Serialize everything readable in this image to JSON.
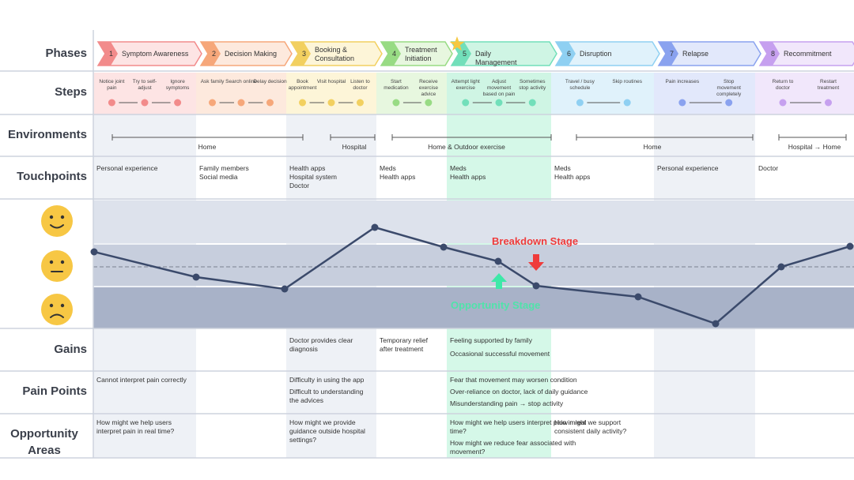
{
  "row_labels": [
    "Phases",
    "Steps",
    "Environments",
    "Touchpoints",
    "Gains",
    "Pain Points",
    "Opportunity Areas"
  ],
  "phases": [
    {
      "number": "1",
      "name": "Symptom Awareness",
      "steps": [
        "Notice joint pain",
        "Try to self- adjust",
        "Ignore symptoms"
      ],
      "touchpoints": [
        "Personal experience"
      ],
      "pain_points": [
        "Cannot interpret pain correctly"
      ],
      "opportunities": [
        "How might we help users interpret pain in real time?"
      ]
    },
    {
      "number": "2",
      "name": "Decision Making",
      "steps": [
        "Ask family",
        "Search online",
        "Delay decision"
      ],
      "touchpoints": [
        "Family members",
        "Social media"
      ]
    },
    {
      "number": "3",
      "name": "Booking & Consultation",
      "steps": [
        "Book appointment",
        "Visit hospital",
        "Listen to doctor"
      ],
      "touchpoints": [
        "Health apps",
        "Hospital system",
        "Doctor"
      ],
      "gains": [
        "Doctor provides clear diagnosis"
      ],
      "pain_points": [
        "Difficulty in using the app",
        "Difficult to understanding the advices"
      ],
      "opportunities": [
        "How might we provide guidance outside hospital settings?"
      ]
    },
    {
      "number": "4",
      "name": "Treatment Initiation",
      "steps": [
        "Start medication",
        "Receive exercise advice"
      ],
      "touchpoints": [
        "Meds",
        "Health apps"
      ],
      "gains": [
        "Temporary relief after treatment"
      ]
    },
    {
      "number": "5",
      "name": "Daily Management",
      "steps": [
        "Attempt light exercise",
        "Adjust movement based on pain",
        "Sometimes stop activity"
      ],
      "touchpoints": [
        "Meds",
        "Health apps"
      ],
      "gains": [
        "Feeling supported by family",
        "Occasional successful movement"
      ],
      "pain_points": [
        "Fear that movement may worsen condition",
        "Over-reliance on doctor, lack of daily guidance",
        "Misunderstanding pain → stop activity"
      ],
      "opportunities": [
        "How might we help users interpret pain in real time?",
        "How might we reduce fear associated with movement?"
      ]
    },
    {
      "number": "6",
      "name": "Disruption",
      "steps": [
        "Travel / busy schedule",
        "Skip routines"
      ],
      "touchpoints": [
        "Meds",
        "Health apps"
      ],
      "opportunities": [
        "How might we support consistent daily activity?"
      ]
    },
    {
      "number": "7",
      "name": "Relapse",
      "steps": [
        "Pain increases",
        "Stop movement completely"
      ],
      "touchpoints": [
        "Personal experience"
      ]
    },
    {
      "number": "8",
      "name": "Recommitment",
      "steps": [
        "Return to doctor",
        "Restart treatment"
      ],
      "touchpoints": [
        "Doctor"
      ]
    }
  ],
  "environments": [
    "Home",
    "Hospital",
    "Home & Outdoor exercise",
    "Home",
    "Hospital → Home"
  ],
  "annotations": {
    "breakdown": "Breakdown Stage",
    "opportunity": "Opportunity Stage"
  }
}
